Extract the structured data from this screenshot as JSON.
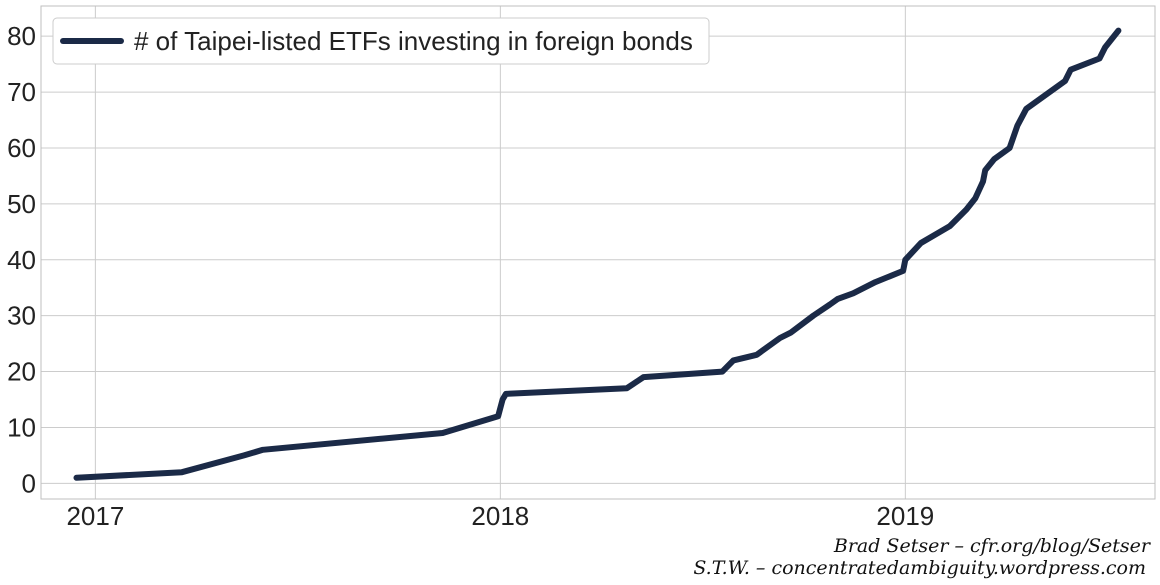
{
  "chart_data": {
    "type": "line",
    "title": "",
    "xlabel": "",
    "ylabel": "",
    "x_axis_type": "date",
    "xlim": [
      "2016-11-13",
      "2019-08-14"
    ],
    "ylim": [
      -2.8,
      85.4
    ],
    "x_ticks": [
      {
        "label": "2017",
        "date": "2017-01-01"
      },
      {
        "label": "2018",
        "date": "2018-01-01"
      },
      {
        "label": "2019",
        "date": "2019-01-01"
      }
    ],
    "y_ticks": [
      0,
      10,
      20,
      30,
      40,
      50,
      60,
      70,
      80
    ],
    "grid": true,
    "legend": {
      "position": "top-left"
    },
    "series": [
      {
        "name": "# of Taipei-listed ETFs investing in foreign bonds",
        "color": "#1b2a47",
        "points": [
          {
            "x": "2016-12-15",
            "y": 1
          },
          {
            "x": "2017-03-20",
            "y": 2
          },
          {
            "x": "2017-05-15",
            "y": 5
          },
          {
            "x": "2017-06-01",
            "y": 6
          },
          {
            "x": "2017-11-10",
            "y": 9
          },
          {
            "x": "2017-12-30",
            "y": 12
          },
          {
            "x": "2018-01-03",
            "y": 15
          },
          {
            "x": "2018-01-06",
            "y": 16
          },
          {
            "x": "2018-04-25",
            "y": 17
          },
          {
            "x": "2018-05-10",
            "y": 19
          },
          {
            "x": "2018-07-20",
            "y": 20
          },
          {
            "x": "2018-07-30",
            "y": 22
          },
          {
            "x": "2018-08-20",
            "y": 23
          },
          {
            "x": "2018-09-10",
            "y": 26
          },
          {
            "x": "2018-09-20",
            "y": 27
          },
          {
            "x": "2018-10-10",
            "y": 30
          },
          {
            "x": "2018-10-25",
            "y": 32
          },
          {
            "x": "2018-11-01",
            "y": 33
          },
          {
            "x": "2018-11-15",
            "y": 34
          },
          {
            "x": "2018-12-05",
            "y": 36
          },
          {
            "x": "2018-12-30",
            "y": 38
          },
          {
            "x": "2019-01-01",
            "y": 40
          },
          {
            "x": "2019-01-15",
            "y": 43
          },
          {
            "x": "2019-02-10",
            "y": 46
          },
          {
            "x": "2019-02-25",
            "y": 49
          },
          {
            "x": "2019-03-05",
            "y": 51
          },
          {
            "x": "2019-03-12",
            "y": 54
          },
          {
            "x": "2019-03-14",
            "y": 56
          },
          {
            "x": "2019-03-22",
            "y": 58
          },
          {
            "x": "2019-04-05",
            "y": 60
          },
          {
            "x": "2019-04-12",
            "y": 64
          },
          {
            "x": "2019-04-20",
            "y": 67
          },
          {
            "x": "2019-05-25",
            "y": 72
          },
          {
            "x": "2019-05-30",
            "y": 74
          },
          {
            "x": "2019-06-25",
            "y": 76
          },
          {
            "x": "2019-06-30",
            "y": 78
          },
          {
            "x": "2019-07-12",
            "y": 81
          }
        ]
      }
    ]
  },
  "credits": {
    "line1": "Brad Setser – cfr.org/blog/Setser",
    "line2": "S.T.W. – concentratedambiguity.wordpress.com"
  },
  "colors": {
    "grid": "#cccccc",
    "frame": "#bfbfbf",
    "line": "#1b2a47"
  }
}
